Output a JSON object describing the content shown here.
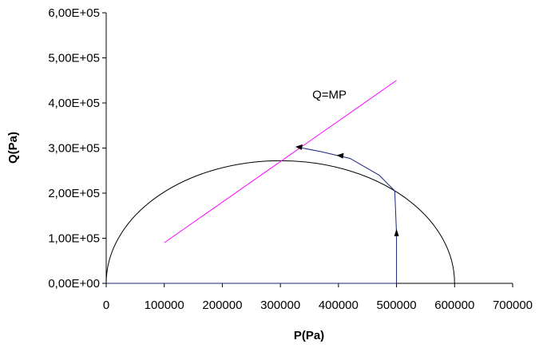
{
  "chart_data": {
    "type": "line",
    "title": "",
    "xlabel": "P(Pa)",
    "ylabel": "Q(Pa)",
    "xlim": [
      0,
      700000
    ],
    "ylim": [
      0,
      600000
    ],
    "x_ticks": [
      "0",
      "100000",
      "200000",
      "300000",
      "400000",
      "500000",
      "600000",
      "700000"
    ],
    "y_ticks": [
      "0,00E+00",
      "1,00E+05",
      "2,00E+05",
      "3,00E+05",
      "4,00E+05",
      "5,00E+05",
      "6,00E+05"
    ],
    "grid": false,
    "legend": "none",
    "annotation": {
      "text": "Q=MP",
      "x": 355000,
      "y": 410000
    },
    "series": [
      {
        "id": "ellipse",
        "color": "#000000",
        "kind": "half-ellipse",
        "center": [
          300000,
          0
        ],
        "semi_axis_p": 300000,
        "semi_axis_q": 272000
      },
      {
        "id": "critical-state-line",
        "color": "#ff00ff",
        "x": [
          100000,
          500000
        ],
        "y": [
          90000,
          450000
        ]
      },
      {
        "id": "stress-path",
        "color": "#1a237e",
        "x": [
          0,
          500000,
          500000,
          497000,
          470000,
          420000,
          370000,
          334000
        ],
        "y": [
          0,
          0,
          110000,
          205000,
          240000,
          277000,
          292000,
          301000
        ]
      }
    ],
    "arrows": [
      {
        "x": 500000,
        "y": 110000,
        "direction": "up"
      },
      {
        "x": 405000,
        "y": 282000,
        "direction": "left"
      },
      {
        "x": 334000,
        "y": 301000,
        "direction": "left"
      }
    ]
  }
}
